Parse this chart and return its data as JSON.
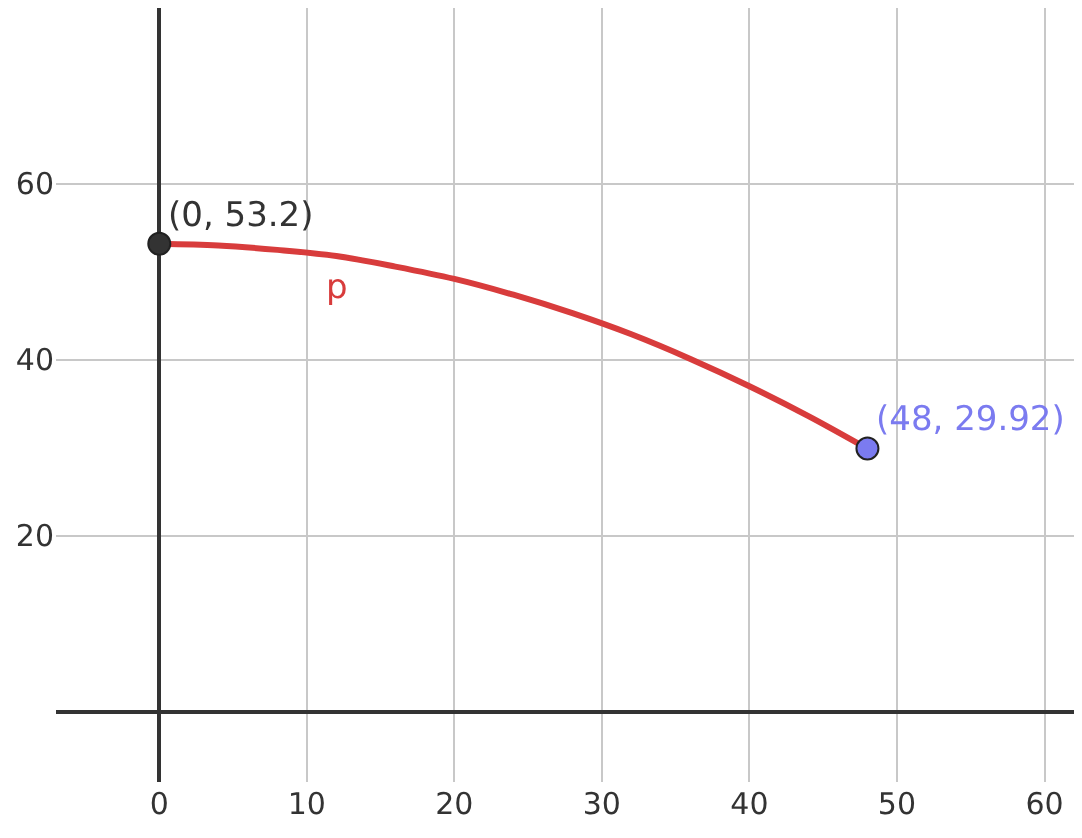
{
  "chart_data": {
    "type": "line",
    "xlim": [
      -7,
      62
    ],
    "ylim": [
      -8,
      80
    ],
    "xticks": [
      0,
      10,
      20,
      30,
      40,
      50,
      60
    ],
    "yticks": [
      20,
      40,
      60
    ],
    "grid": true,
    "series": [
      {
        "name": "p",
        "color": "#d83c3c",
        "marker": "none",
        "x": [
          0,
          4,
          8,
          12,
          16,
          20,
          24,
          28,
          32,
          36,
          40,
          44,
          48
        ],
        "values": [
          53.2,
          53,
          52.5,
          51.8,
          50.6,
          49.2,
          47.4,
          45.3,
          42.9,
          40.1,
          37,
          33.6,
          29.9
        ]
      },
      {
        "type": "scatter",
        "color": "#333333",
        "marker": "circle",
        "x": [
          0
        ],
        "values": [
          53.2
        ]
      },
      {
        "type": "scatter",
        "color": "#7b7bf0",
        "marker": "circle",
        "x": [
          48
        ],
        "values": [
          29.92
        ]
      }
    ],
    "annotations": [
      {
        "text": "(0, 53.2)",
        "x": 0,
        "y": 53.2
      },
      {
        "text": "(48, 29.92)",
        "x": 48,
        "y": 29.92
      }
    ]
  }
}
